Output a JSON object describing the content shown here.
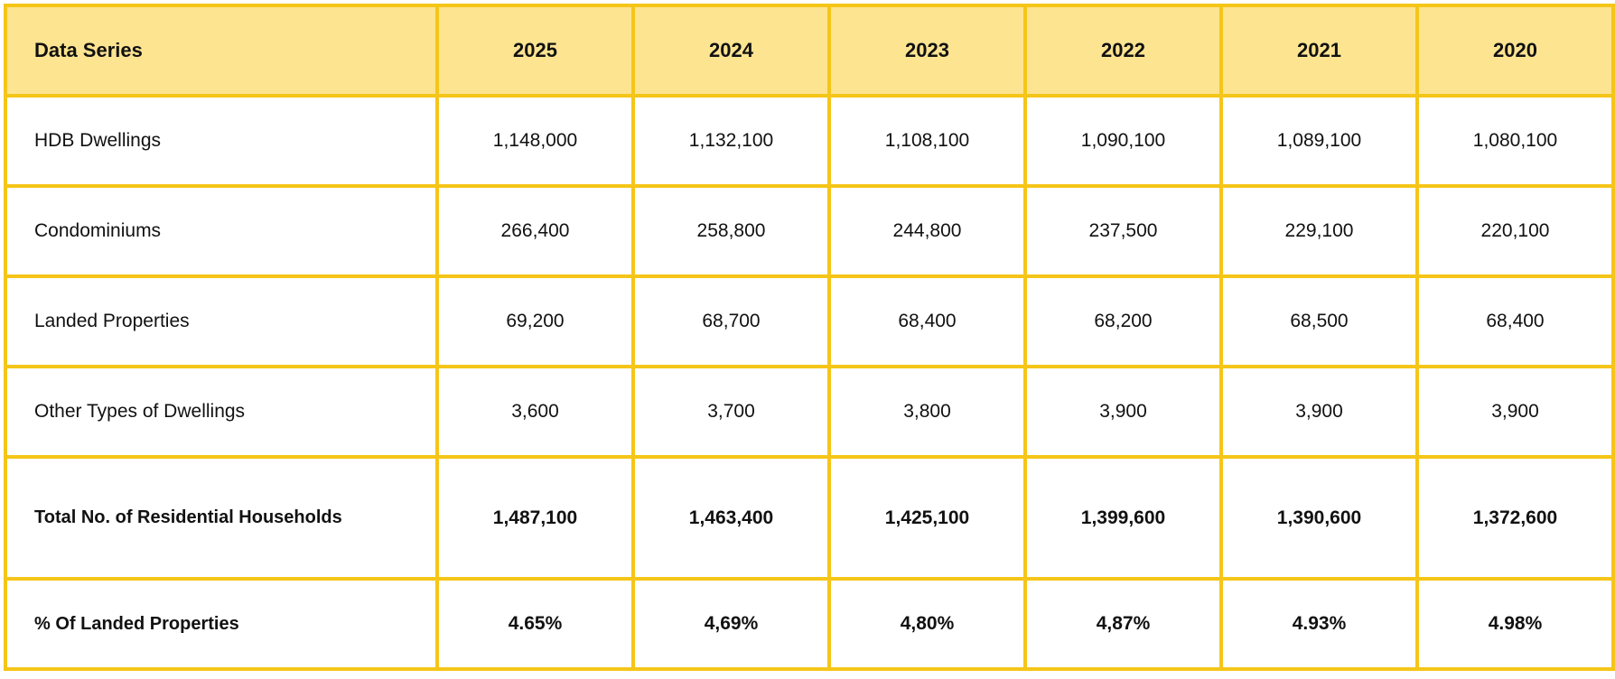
{
  "table": {
    "header_label": "Data Series",
    "years": [
      "2025",
      "2024",
      "2023",
      "2022",
      "2021",
      "2020"
    ],
    "rows": [
      {
        "label": "HDB Dwellings",
        "values": [
          "1,148,000",
          "1,132,100",
          "1,108,100",
          "1,090,100",
          "1,089,100",
          "1,080,100"
        ]
      },
      {
        "label": "Condominiums",
        "values": [
          "266,400",
          "258,800",
          "244,800",
          "237,500",
          "229,100",
          "220,100"
        ]
      },
      {
        "label": "Landed Properties",
        "values": [
          "69,200",
          "68,700",
          "68,400",
          "68,200",
          "68,500",
          "68,400"
        ]
      },
      {
        "label": "Other Types of Dwellings",
        "values": [
          "3,600",
          "3,700",
          "3,800",
          "3,900",
          "3,900",
          "3,900"
        ]
      },
      {
        "label": "Total No. of Residential Households",
        "values": [
          "1,487,100",
          "1,463,400",
          "1,425,100",
          "1,399,600",
          "1,390,600",
          "1,372,600"
        ]
      },
      {
        "label": "% Of Landed Properties",
        "values": [
          "4.65%",
          "4,69%",
          "4,80%",
          "4,87%",
          "4.93%",
          "4.98%"
        ]
      }
    ]
  },
  "colors": {
    "header_bg": "#fde491",
    "border": "#f5c518"
  }
}
